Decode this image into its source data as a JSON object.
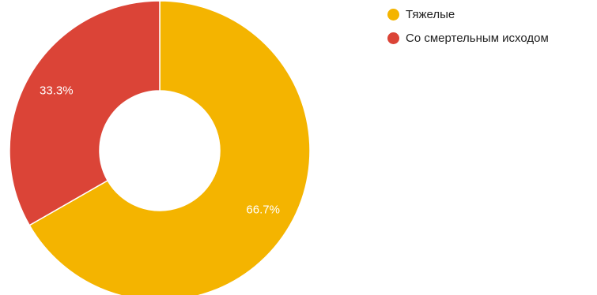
{
  "chart_data": {
    "type": "pie",
    "donut": true,
    "start_angle_deg": 0,
    "direction": "clockwise",
    "legend_position": "right",
    "series": [
      {
        "name": "Тяжелые",
        "value": 66.7,
        "label": "66.7%",
        "color": "#f4b400"
      },
      {
        "name": "Со смертельным исходом",
        "value": 33.3,
        "label": "33.3%",
        "color": "#db4437"
      }
    ]
  }
}
